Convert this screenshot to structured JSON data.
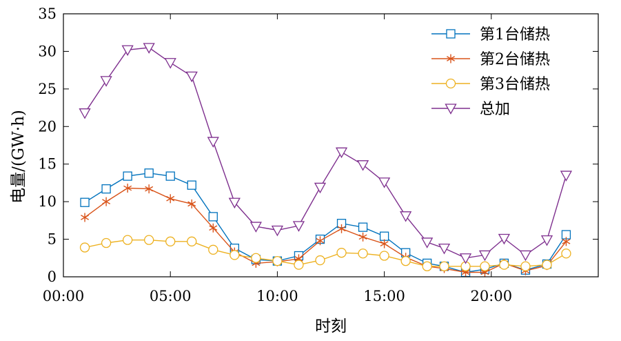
{
  "chart_data": {
    "type": "line",
    "xlabel": "时刻",
    "ylabel": "电量/(GW·h)",
    "xlim": [
      0,
      25
    ],
    "ylim": [
      0,
      35
    ],
    "xticks": [
      0,
      5,
      10,
      15,
      20
    ],
    "xtick_labels": [
      "00:00",
      "05:00",
      "10:00",
      "15:00",
      "20:00"
    ],
    "yticks": [
      0,
      5,
      10,
      15,
      20,
      25,
      30,
      35
    ],
    "ytick_labels": [
      "0",
      "5",
      "10",
      "15",
      "20",
      "25",
      "30",
      "35"
    ],
    "grid": false,
    "legend_position": "top-right",
    "x": [
      1,
      2,
      3,
      4,
      5,
      6,
      7,
      8,
      9,
      10,
      11,
      12,
      13,
      14,
      15,
      16,
      17,
      17.8,
      18.8,
      19.7,
      20.6,
      21.6,
      22.6,
      23.5
    ],
    "series": [
      {
        "name": "第1台储热",
        "color": "#0072bd",
        "marker": "square",
        "values": [
          9.9,
          11.7,
          13.4,
          13.8,
          13.4,
          12.2,
          8.0,
          3.8,
          2.3,
          2.1,
          2.8,
          5.0,
          7.1,
          6.6,
          5.4,
          3.2,
          1.8,
          1.4,
          0.6,
          1.0,
          1.8,
          0.9,
          1.7,
          5.6
        ]
      },
      {
        "name": "第2台储热",
        "color": "#d95319",
        "marker": "asterisk",
        "values": [
          7.9,
          10.0,
          11.8,
          11.7,
          10.4,
          9.7,
          6.5,
          3.3,
          1.8,
          2.0,
          2.4,
          4.8,
          6.4,
          5.3,
          4.4,
          2.6,
          1.4,
          1.1,
          0.6,
          0.6,
          1.8,
          0.8,
          1.5,
          4.7
        ]
      },
      {
        "name": "第3台储热",
        "color": "#edb120",
        "marker": "circle",
        "values": [
          3.9,
          4.5,
          4.9,
          4.9,
          4.7,
          4.7,
          3.6,
          2.9,
          2.5,
          2.1,
          1.6,
          2.2,
          3.2,
          3.1,
          2.8,
          2.1,
          1.4,
          1.4,
          1.4,
          1.4,
          1.6,
          1.4,
          1.6,
          3.1
        ]
      },
      {
        "name": "总加",
        "color": "#7e2f8e",
        "marker": "triangle-down",
        "values": [
          21.8,
          26.1,
          30.2,
          30.5,
          28.5,
          26.7,
          18.0,
          9.9,
          6.7,
          6.2,
          6.8,
          11.9,
          16.6,
          14.9,
          12.6,
          8.1,
          4.6,
          3.8,
          2.5,
          2.9,
          5.1,
          2.9,
          4.9,
          13.5
        ]
      }
    ]
  }
}
